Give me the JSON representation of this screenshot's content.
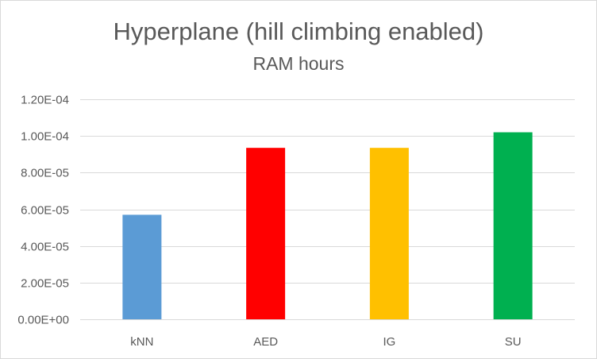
{
  "chart_data": {
    "type": "bar",
    "title": "Hyperplane (hill climbing enabled)",
    "subtitle": "RAM hours",
    "xlabel": "",
    "ylabel": "",
    "categories": [
      "kNN",
      "AED",
      "IG",
      "SU"
    ],
    "values": [
      5.7e-05,
      9.35e-05,
      9.35e-05,
      0.000102
    ],
    "colors": [
      "#5b9bd5",
      "#ff0000",
      "#ffc000",
      "#00b050"
    ],
    "ylim": [
      0,
      0.00012
    ],
    "yticks": [
      0,
      2e-05,
      4e-05,
      6e-05,
      8e-05,
      0.0001,
      0.00012
    ],
    "ytick_labels": [
      "0.00E+00",
      "2.00E-05",
      "4.00E-05",
      "6.00E-05",
      "8.00E-05",
      "1.00E-04",
      "1.20E-04"
    ],
    "grid": true,
    "legend": "none"
  }
}
